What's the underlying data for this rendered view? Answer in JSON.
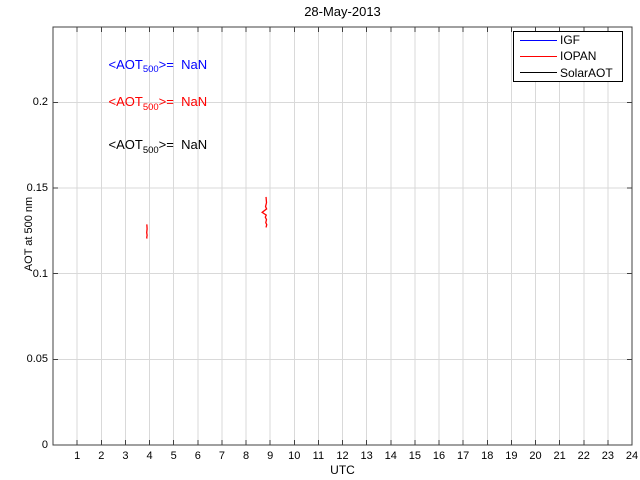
{
  "chart_data": {
    "type": "line",
    "title": "28-May-2013",
    "xlabel": "UTC",
    "ylabel": "AOT at 500 nm",
    "xlim": [
      0,
      24
    ],
    "ylim": [
      0,
      0.244
    ],
    "xticks": [
      1,
      2,
      3,
      4,
      5,
      6,
      7,
      8,
      9,
      10,
      11,
      12,
      13,
      14,
      15,
      16,
      17,
      18,
      19,
      20,
      21,
      22,
      23,
      24
    ],
    "yticks": [
      0,
      0.05,
      0.1,
      0.15,
      0.2
    ],
    "ytick_labels": [
      "0",
      "0.05",
      "0.1",
      "0.15",
      "0.2"
    ],
    "grid": true,
    "colors": {
      "grid": "#d9d9d9",
      "axis": "#404040",
      "tick": "#404040",
      "text": "#000000",
      "background": "#ffffff"
    },
    "legend": {
      "position": "top-right",
      "entries": [
        {
          "label": "IGF",
          "color": "#0000ff"
        },
        {
          "label": "IOPAN",
          "color": "#ff0000"
        },
        {
          "label": "SolarAOT",
          "color": "#000000"
        }
      ]
    },
    "series": [
      {
        "name": "IGF",
        "color": "#0000ff",
        "segments": []
      },
      {
        "name": "IOPAN",
        "color": "#ff0000",
        "segments": [
          [
            [
              3.89,
              0.1288
            ],
            [
              3.9,
              0.1262
            ],
            [
              3.885,
              0.124
            ],
            [
              3.9,
              0.1224
            ],
            [
              3.886,
              0.1212
            ],
            [
              3.895,
              0.1205
            ]
          ],
          [
            [
              8.83,
              0.1448
            ],
            [
              8.85,
              0.1415
            ],
            [
              8.81,
              0.1392
            ],
            [
              8.855,
              0.1378
            ],
            [
              8.67,
              0.1358
            ],
            [
              8.84,
              0.1342
            ],
            [
              8.8,
              0.133
            ],
            [
              8.85,
              0.1316
            ],
            [
              8.82,
              0.1298
            ],
            [
              8.86,
              0.1286
            ],
            [
              8.83,
              0.127
            ]
          ]
        ]
      },
      {
        "name": "SolarAOT",
        "color": "#000000",
        "segments": []
      }
    ],
    "annotations": [
      {
        "prefix": "<AOT",
        "sub": "500",
        "suffix": ">=  NaN",
        "color": "#0000ff",
        "x": 2.3,
        "y": 0.2215
      },
      {
        "prefix": "<AOT",
        "sub": "500",
        "suffix": ">=  NaN",
        "color": "#ff0000",
        "x": 2.3,
        "y": 0.1995
      },
      {
        "prefix": "<AOT",
        "sub": "500",
        "suffix": ">=  NaN",
        "color": "#000000",
        "x": 2.3,
        "y": 0.1745
      }
    ]
  }
}
